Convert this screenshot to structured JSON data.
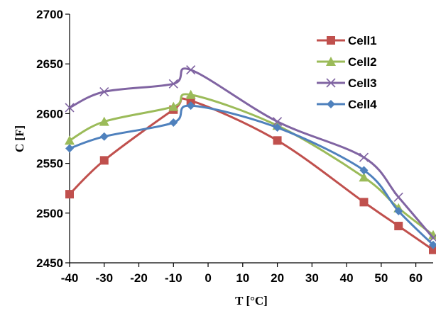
{
  "chart_data": {
    "type": "line",
    "title": "",
    "xlabel": "T [°C]",
    "ylabel": "C [F]",
    "xlim": [
      -40,
      65
    ],
    "ylim": [
      2450,
      2700
    ],
    "x_ticks": [
      -40,
      -30,
      -20,
      -10,
      0,
      10,
      20,
      30,
      40,
      50,
      60
    ],
    "y_ticks": [
      2450,
      2500,
      2550,
      2600,
      2650,
      2700
    ],
    "grid": false,
    "legend_position": "top-right",
    "series": [
      {
        "name": "Cell1",
        "color": "#c0504d",
        "marker": "square",
        "x": [
          -40,
          -30,
          -10,
          -5,
          20,
          45,
          55,
          65
        ],
        "y": [
          2519,
          2553,
          2604,
          2613,
          2573,
          2511,
          2487,
          2463
        ]
      },
      {
        "name": "Cell2",
        "color": "#9bbb59",
        "marker": "triangle",
        "x": [
          -40,
          -30,
          -10,
          -5,
          20,
          45,
          55,
          65
        ],
        "y": [
          2573,
          2592,
          2607,
          2619,
          2588,
          2536,
          2505,
          2478
        ]
      },
      {
        "name": "Cell3",
        "color": "#8064a2",
        "marker": "x",
        "x": [
          -40,
          -30,
          -10,
          -5,
          20,
          45,
          55,
          65
        ],
        "y": [
          2606,
          2622,
          2630,
          2644,
          2592,
          2556,
          2516,
          2475
        ]
      },
      {
        "name": "Cell4",
        "color": "#4f81bd",
        "marker": "diamond",
        "x": [
          -40,
          -30,
          -10,
          -5,
          20,
          45,
          55,
          65
        ],
        "y": [
          2565,
          2577,
          2591,
          2608,
          2586,
          2543,
          2502,
          2468
        ]
      }
    ]
  }
}
